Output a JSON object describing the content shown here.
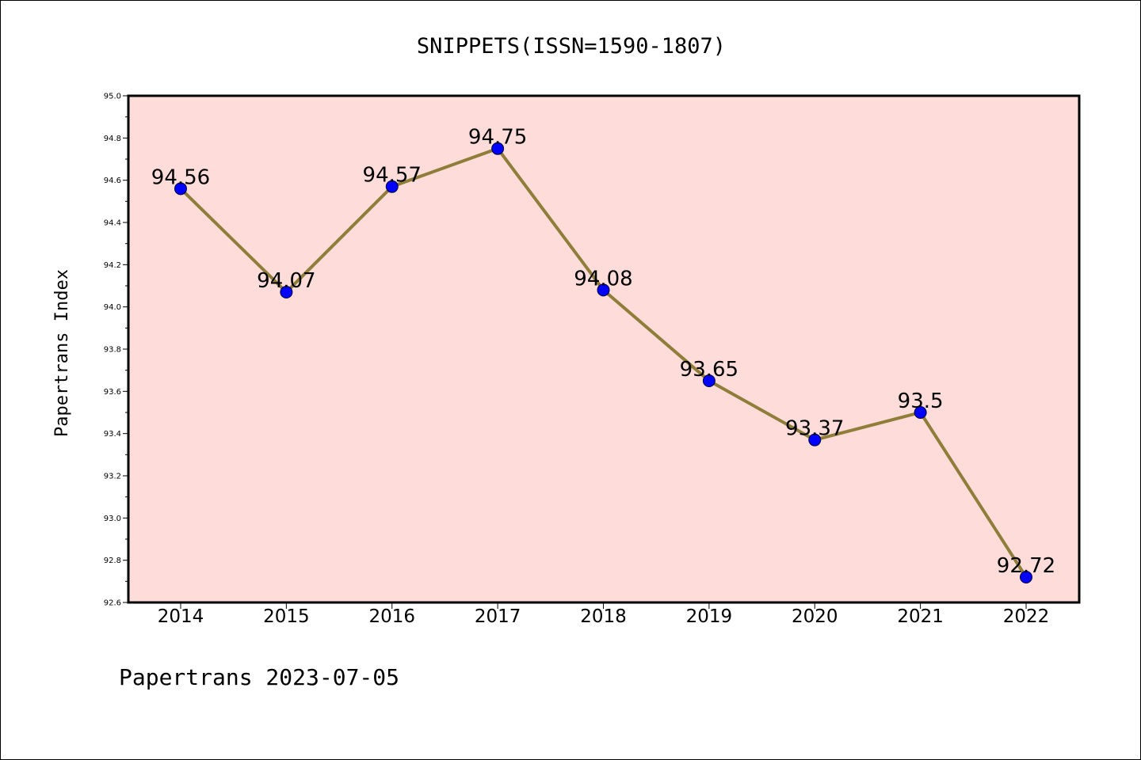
{
  "chart_data": {
    "type": "line",
    "title": "SNIPPETS(ISSN=1590-1807)",
    "xlabel": "",
    "ylabel": "Papertrans Index",
    "categories": [
      "2014",
      "2015",
      "2016",
      "2017",
      "2018",
      "2019",
      "2020",
      "2021",
      "2022"
    ],
    "values": [
      94.56,
      94.07,
      94.57,
      94.75,
      94.08,
      93.65,
      93.37,
      93.5,
      92.72
    ],
    "data_labels": [
      "94.56",
      "94.07",
      "94.57",
      "94.75",
      "94.08",
      "93.65",
      "93.37",
      "93.5",
      "92.72"
    ],
    "ylim": [
      92.6,
      95.0
    ],
    "yticks": [
      "92.6",
      "92.8",
      "93.0",
      "93.2",
      "93.4",
      "93.6",
      "93.8",
      "94.0",
      "94.2",
      "94.4",
      "94.6",
      "94.8",
      "95.0"
    ],
    "grid": false,
    "legend": "none",
    "footer": "Papertrans 2023-07-05",
    "colors": {
      "plot_background": "#fddcd9",
      "line": "#8f7d3a",
      "marker": "#0000ff",
      "axis": "#000000"
    }
  }
}
